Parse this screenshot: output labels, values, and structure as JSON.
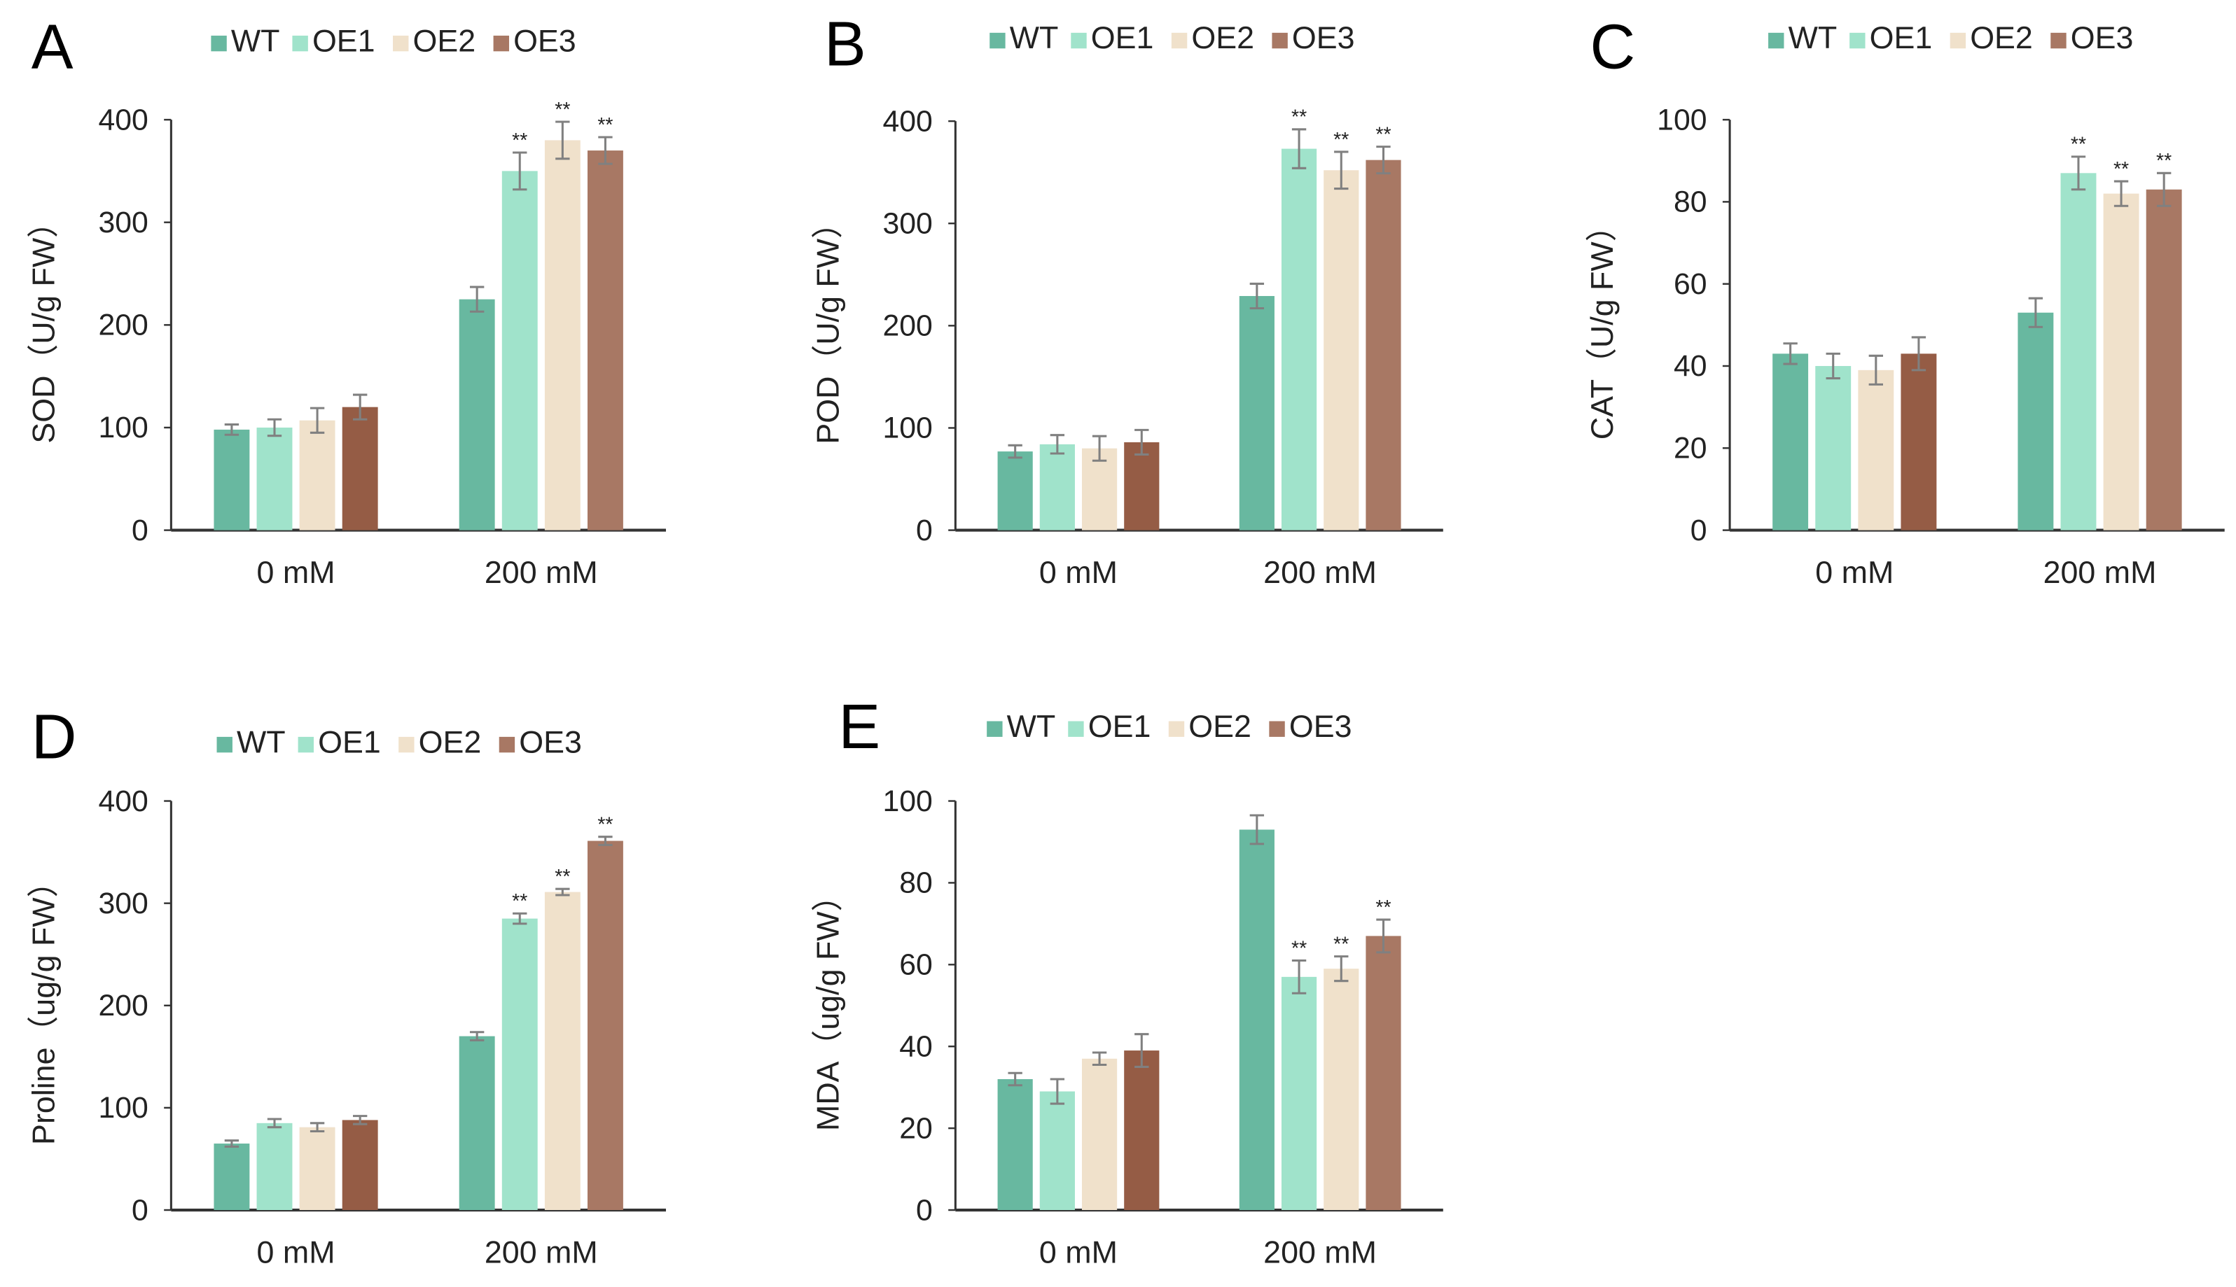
{
  "legend": [
    "WT",
    "OE1",
    "OE2",
    "OE3"
  ],
  "colors": {
    "WT": "#68b8a0",
    "OE1": "#a0e3cb",
    "OE2": "#f0e1cb",
    "OE3_0mM": "#955c45",
    "OE3_200mM": "#a87864",
    "OE3_legend": "#a87864",
    "error": "#808080",
    "axis": "#333333"
  },
  "chart_data": [
    {
      "panel": "A",
      "type": "bar",
      "ylabel": "SOD（U/g FW）",
      "categories": [
        "0 mM",
        "200 mM"
      ],
      "ylim": [
        0,
        400
      ],
      "yticks": [
        0,
        100,
        200,
        300,
        400
      ],
      "series": [
        {
          "name": "WT",
          "values": [
            98,
            225
          ],
          "errors": [
            5,
            12
          ]
        },
        {
          "name": "OE1",
          "values": [
            100,
            350
          ],
          "errors": [
            8,
            18
          ]
        },
        {
          "name": "OE2",
          "values": [
            107,
            380
          ],
          "errors": [
            12,
            18
          ]
        },
        {
          "name": "OE3",
          "values": [
            120,
            370
          ],
          "errors": [
            12,
            13
          ]
        }
      ]
    },
    {
      "panel": "B",
      "type": "bar",
      "ylabel": "POD（U/g FW）",
      "categories": [
        "0 mM",
        "200 mM"
      ],
      "ylim": [
        0,
        400
      ],
      "yticks": [
        0,
        100,
        200,
        300,
        400
      ],
      "series": [
        {
          "name": "WT",
          "values": [
            77,
            229
          ],
          "errors": [
            6,
            12
          ]
        },
        {
          "name": "OE1",
          "values": [
            84,
            373
          ],
          "errors": [
            9,
            19
          ]
        },
        {
          "name": "OE2",
          "values": [
            80,
            352
          ],
          "errors": [
            12,
            18
          ]
        },
        {
          "name": "OE3",
          "values": [
            86,
            362
          ],
          "errors": [
            12,
            13
          ]
        }
      ]
    },
    {
      "panel": "C",
      "type": "bar",
      "ylabel": "CAT（U/g FW）",
      "categories": [
        "0 mM",
        "200 mM"
      ],
      "ylim": [
        0,
        100
      ],
      "yticks": [
        0,
        20,
        40,
        60,
        80,
        100
      ],
      "series": [
        {
          "name": "WT",
          "values": [
            43,
            53
          ],
          "errors": [
            2.5,
            3.5
          ]
        },
        {
          "name": "OE1",
          "values": [
            40,
            87
          ],
          "errors": [
            3,
            4
          ]
        },
        {
          "name": "OE2",
          "values": [
            39,
            82
          ],
          "errors": [
            3.5,
            3
          ]
        },
        {
          "name": "OE3",
          "values": [
            43,
            83
          ],
          "errors": [
            4,
            4
          ]
        }
      ]
    },
    {
      "panel": "D",
      "type": "bar",
      "ylabel": "Proline（ug/g FW）",
      "categories": [
        "0 mM",
        "200 mM"
      ],
      "ylim": [
        0,
        400
      ],
      "yticks": [
        0,
        100,
        200,
        300,
        400
      ],
      "series": [
        {
          "name": "WT",
          "values": [
            65,
            170
          ],
          "errors": [
            3,
            4
          ]
        },
        {
          "name": "OE1",
          "values": [
            85,
            285
          ],
          "errors": [
            4,
            5
          ]
        },
        {
          "name": "OE2",
          "values": [
            81,
            311
          ],
          "errors": [
            4,
            3
          ]
        },
        {
          "name": "OE3",
          "values": [
            88,
            361
          ],
          "errors": [
            4,
            4
          ]
        }
      ]
    },
    {
      "panel": "E",
      "type": "bar",
      "ylabel": "MDA（ug/g FW）",
      "categories": [
        "0 mM",
        "200 mM"
      ],
      "ylim": [
        0,
        100
      ],
      "yticks": [
        0,
        20,
        40,
        60,
        80,
        100
      ],
      "series": [
        {
          "name": "WT",
          "values": [
            32,
            93
          ],
          "errors": [
            1.5,
            3.5
          ]
        },
        {
          "name": "OE1",
          "values": [
            29,
            57
          ],
          "errors": [
            3,
            4
          ]
        },
        {
          "name": "OE2",
          "values": [
            37,
            59
          ],
          "errors": [
            1.5,
            3
          ]
        },
        {
          "name": "OE3",
          "values": [
            39,
            67
          ],
          "errors": [
            4,
            4
          ]
        }
      ]
    }
  ],
  "significance": {
    "marker": "**"
  }
}
